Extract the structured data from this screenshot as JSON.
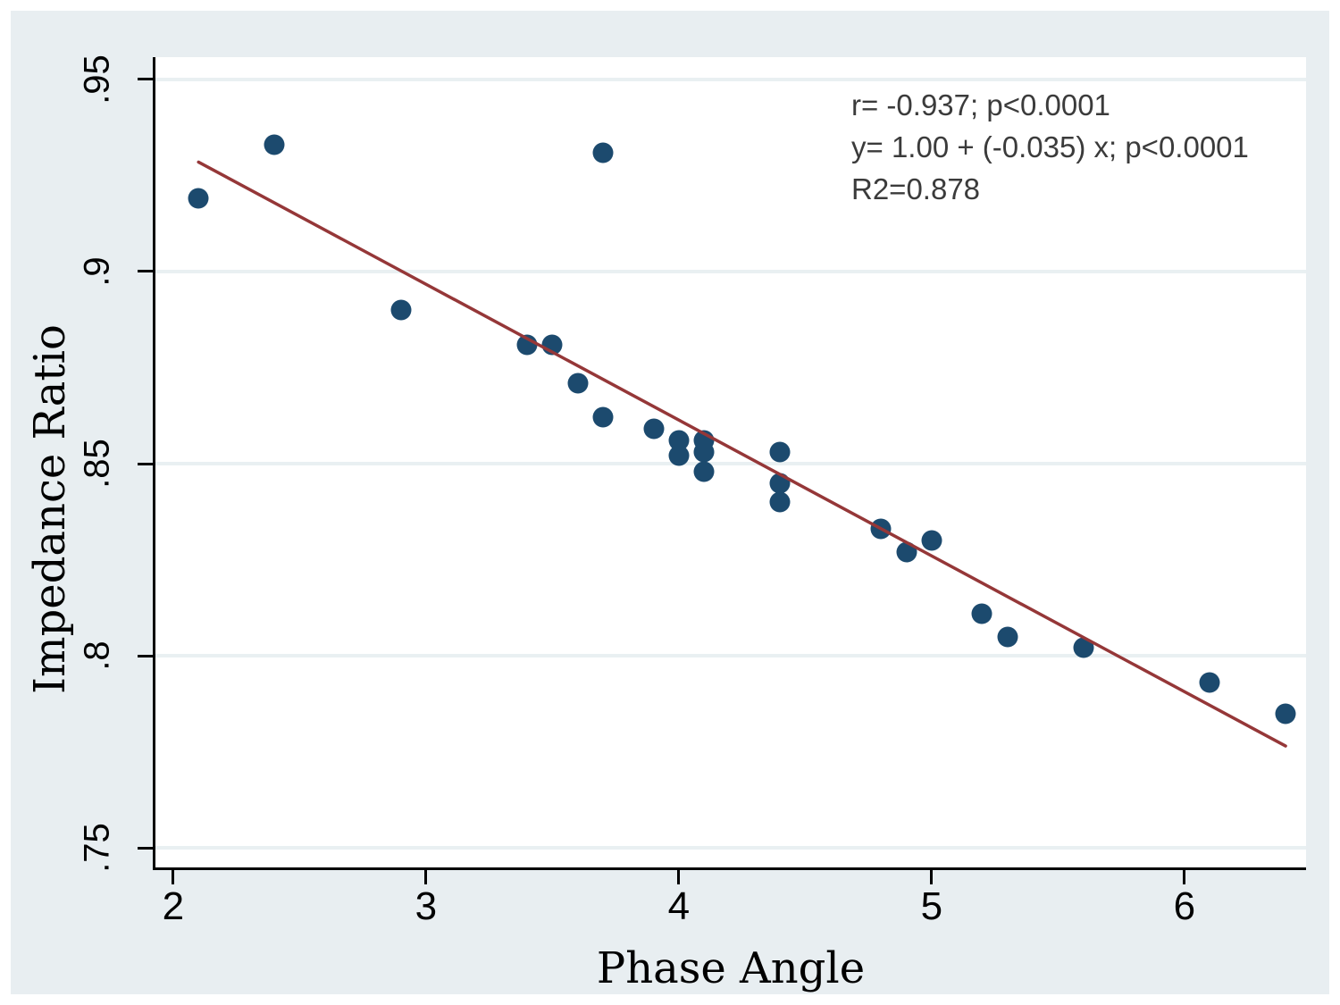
{
  "figure": {
    "background": "#ffffff",
    "canvas_bg": "#e8eef1",
    "plot_bg": "#ffffff",
    "grid_color": "#e9f0f2",
    "axis_color": "#000000",
    "tick_label_color": "#000000",
    "annotation_color": "#3b3b3b"
  },
  "chart_data": {
    "type": "scatter",
    "title": "",
    "xlabel": "Phase Angle",
    "ylabel": "Impedance Ratio",
    "xlim": [
      1.919,
      6.481
    ],
    "ylim": [
      0.7442,
      0.9558
    ],
    "x_ticks": [
      2,
      3,
      4,
      5,
      6
    ],
    "x_tick_labels": [
      "2",
      "3",
      "4",
      "5",
      "6"
    ],
    "y_ticks": [
      0.75,
      0.8,
      0.85,
      0.9,
      0.95
    ],
    "y_tick_labels": [
      ".75",
      ".8",
      ".85",
      ".9",
      ".95"
    ],
    "grid": "horizontal",
    "legend": "none",
    "point_color": "#1c4a6e",
    "points": [
      [
        2.1,
        0.919
      ],
      [
        2.4,
        0.933
      ],
      [
        2.9,
        0.89
      ],
      [
        3.4,
        0.881
      ],
      [
        3.5,
        0.881
      ],
      [
        3.6,
        0.871
      ],
      [
        3.7,
        0.862
      ],
      [
        3.7,
        0.931
      ],
      [
        3.9,
        0.859
      ],
      [
        4.0,
        0.856
      ],
      [
        4.0,
        0.852
      ],
      [
        4.1,
        0.856
      ],
      [
        4.1,
        0.853
      ],
      [
        4.1,
        0.848
      ],
      [
        4.4,
        0.853
      ],
      [
        4.4,
        0.845
      ],
      [
        4.4,
        0.84
      ],
      [
        4.8,
        0.833
      ],
      [
        4.9,
        0.827
      ],
      [
        5.0,
        0.83
      ],
      [
        5.2,
        0.811
      ],
      [
        5.3,
        0.805
      ],
      [
        5.6,
        0.802
      ],
      [
        6.1,
        0.793
      ],
      [
        6.4,
        0.785
      ]
    ],
    "fit_line": {
      "x1": 2.1,
      "y1": 0.9285,
      "x2": 6.4,
      "y2": 0.7765,
      "color": "#953738",
      "width": 3.5
    },
    "annotation_lines": [
      "r= -0.937; p<0.0001",
      "y= 1.00 + (-0.035) x; p<0.0001",
      "R2=0.878"
    ]
  }
}
